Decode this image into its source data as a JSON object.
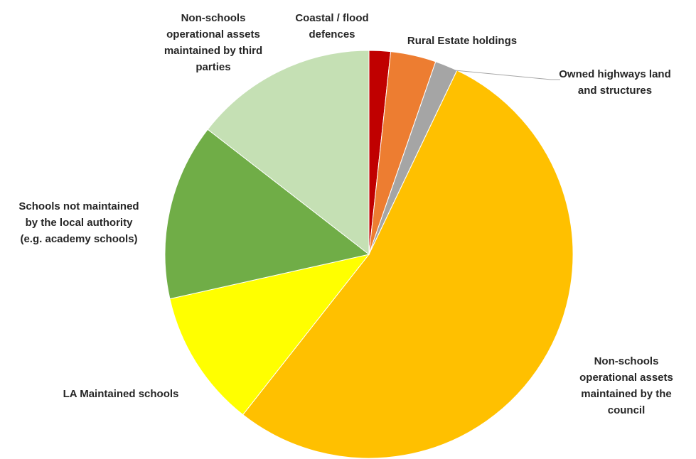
{
  "chart_data": {
    "type": "pie",
    "title": "",
    "start_angle_deg": 0,
    "direction": "clockwise",
    "slices": [
      {
        "label": "Coastal / flood defences",
        "value": 1.7,
        "color": "#C00000"
      },
      {
        "label": "Rural Estate holdings",
        "value": 3.6,
        "color": "#ED7D31"
      },
      {
        "label": "Owned highways land and structures",
        "value": 1.8,
        "color": "#A5A5A5"
      },
      {
        "label": "Non-schools operational assets maintained by the council",
        "value": 53.5,
        "color": "#FFC000"
      },
      {
        "label": "LA Maintained schools",
        "value": 10.9,
        "color": "#FFFF00"
      },
      {
        "label": "Schools not maintained by the local authority (e.g. academy schools)",
        "value": 14.0,
        "color": "#70AD47"
      },
      {
        "label": "Non-schools operational assets maintained by third parties",
        "value": 14.5,
        "color": "#C5E0B4"
      }
    ]
  }
}
